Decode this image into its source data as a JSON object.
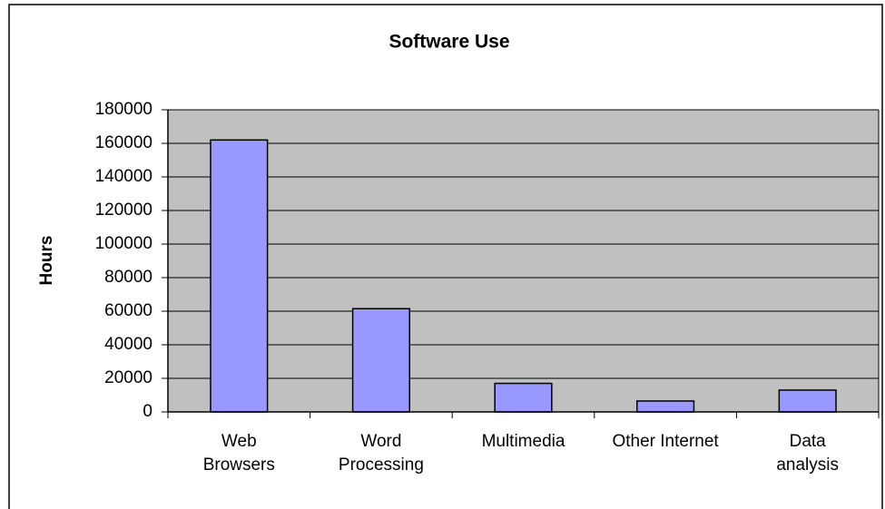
{
  "chart_data": {
    "type": "bar",
    "title": "Software Use",
    "y_label": "Hours",
    "categories": [
      "Web\nBrowsers",
      "Word\nProcessing",
      "Multimedia",
      "Other Internet",
      "Data\nanalysis"
    ],
    "values": [
      162000,
      61500,
      17000,
      6500,
      13000
    ],
    "color": "#9999ff",
    "ylim": [
      0,
      180000
    ],
    "yticks": [
      0,
      20000,
      40000,
      60000,
      80000,
      100000,
      120000,
      140000,
      160000,
      180000
    ],
    "grid": true,
    "plot_background": "#c0c0c0"
  }
}
